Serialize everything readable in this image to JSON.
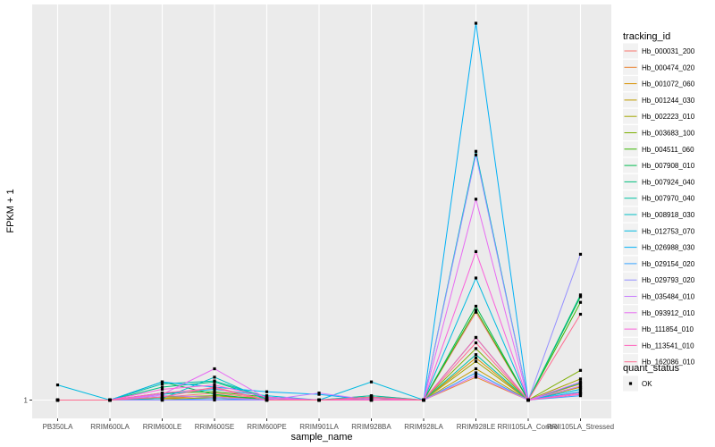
{
  "chart_data": {
    "type": "line",
    "xlabel": "sample_name",
    "ylabel": "FPKM + 1",
    "y_tick_labels": [
      "1"
    ],
    "categories": [
      "PB350LA",
      "RRIM600LA",
      "RRIM600LE",
      "RRIM600SE",
      "RRIM600PE",
      "RRIM901LA",
      "RRIM928BA",
      "RRIM928LA",
      "RRIM928LE",
      "RRII105LA_Control",
      "RRII105LA_Stressed"
    ],
    "grid": true,
    "legend_position": "right",
    "legend": {
      "color_title": "tracking_id",
      "shape_title": "quant_status",
      "shape_entries": [
        "OK"
      ]
    },
    "series": [
      {
        "name": "Hb_000031_200",
        "color": "#F8766D",
        "values": [
          1.0,
          1.0,
          1.2,
          1.5,
          1.1,
          1.0,
          1.3,
          1.0,
          14.5,
          1.0,
          2.0
        ]
      },
      {
        "name": "Hb_000474_020",
        "color": "#EA8331",
        "values": [
          1.0,
          1.0,
          1.1,
          1.3,
          1.0,
          1.0,
          1.2,
          1.0,
          3.0,
          1.0,
          1.5
        ]
      },
      {
        "name": "Hb_001072_060",
        "color": "#D89000",
        "values": [
          1.0,
          1.0,
          1.0,
          1.2,
          1.0,
          1.0,
          1.1,
          1.0,
          5.5,
          1.0,
          2.3
        ]
      },
      {
        "name": "Hb_001244_030",
        "color": "#C09B00",
        "values": [
          1.0,
          1.0,
          1.1,
          1.1,
          1.0,
          1.0,
          1.0,
          1.0,
          4.0,
          1.0,
          2.0
        ]
      },
      {
        "name": "Hb_002223_010",
        "color": "#A3A500",
        "values": [
          1.0,
          1.0,
          1.0,
          1.2,
          1.0,
          1.0,
          1.0,
          1.0,
          5.0,
          1.0,
          2.8
        ]
      },
      {
        "name": "Hb_003683_100",
        "color": "#7CAE00",
        "values": [
          1.0,
          1.0,
          1.2,
          1.3,
          1.1,
          1.0,
          1.0,
          1.0,
          7.0,
          1.0,
          3.8
        ]
      },
      {
        "name": "Hb_004511_060",
        "color": "#39B600",
        "values": [
          1.0,
          1.0,
          1.5,
          1.6,
          1.2,
          1.0,
          1.1,
          1.0,
          15.0,
          1.0,
          17.0
        ]
      },
      {
        "name": "Hb_007908_010",
        "color": "#00BB4E",
        "values": [
          1.0,
          1.0,
          2.5,
          1.4,
          1.0,
          1.0,
          1.2,
          1.0,
          16.0,
          1.0,
          18.5
        ]
      },
      {
        "name": "Hb_007924_040",
        "color": "#00BF7D",
        "values": [
          1.0,
          1.0,
          2.0,
          2.5,
          1.1,
          1.0,
          1.1,
          1.0,
          9.0,
          1.0,
          19.0
        ]
      },
      {
        "name": "Hb_007970_040",
        "color": "#00C1A3",
        "values": [
          1.0,
          1.0,
          2.3,
          2.6,
          1.2,
          1.0,
          1.3,
          1.0,
          6.0,
          1.0,
          2.4
        ]
      },
      {
        "name": "Hb_008918_030",
        "color": "#00BFC4",
        "values": [
          1.0,
          1.0,
          1.1,
          3.0,
          1.0,
          1.0,
          1.2,
          1.0,
          80.0,
          1.0,
          1.8
        ]
      },
      {
        "name": "Hb_012753_070",
        "color": "#00BAE0",
        "values": [
          2.2,
          1.0,
          1.4,
          1.8,
          1.3,
          1.0,
          2.5,
          1.0,
          24.0,
          1.0,
          1.8
        ]
      },
      {
        "name": "Hb_026988_030",
        "color": "#00B0F6",
        "values": [
          1.0,
          1.0,
          2.5,
          2.0,
          1.6,
          1.4,
          1.0,
          1.0,
          170.0,
          1.0,
          1.6
        ]
      },
      {
        "name": "Hb_029154_020",
        "color": "#35A2FF",
        "values": [
          1.0,
          1.0,
          1.0,
          1.1,
          1.0,
          1.0,
          1.0,
          1.0,
          3.5,
          1.0,
          1.3
        ]
      },
      {
        "name": "Hb_029793_020",
        "color": "#9590FF",
        "values": [
          1.0,
          1.0,
          1.0,
          1.0,
          1.0,
          1.0,
          1.0,
          1.0,
          78.0,
          1.0,
          32.0
        ]
      },
      {
        "name": "Hb_035484_010",
        "color": "#C77CFF",
        "values": [
          1.0,
          1.0,
          1.3,
          1.2,
          1.0,
          1.5,
          1.0,
          1.0,
          3.2,
          1.0,
          2.1
        ]
      },
      {
        "name": "Hb_093912_010",
        "color": "#E76BF3",
        "values": [
          1.0,
          1.0,
          1.4,
          4.0,
          1.1,
          1.0,
          1.0,
          1.0,
          55.0,
          1.0,
          2.5
        ]
      },
      {
        "name": "Hb_111854_010",
        "color": "#FA62DB",
        "values": [
          1.0,
          1.0,
          1.8,
          2.2,
          1.2,
          1.0,
          1.1,
          1.0,
          33.0,
          1.0,
          1.5
        ]
      },
      {
        "name": "Hb_113541_010",
        "color": "#FF62BC",
        "values": [
          1.0,
          1.0,
          1.5,
          1.9,
          1.0,
          1.0,
          1.0,
          1.0,
          9.0,
          1.0,
          1.4
        ]
      },
      {
        "name": "Hb_162086_010",
        "color": "#FF6C90",
        "values": [
          1.0,
          1.0,
          1.2,
          2.0,
          1.0,
          1.0,
          1.2,
          1.0,
          8.0,
          1.0,
          14.0
        ]
      }
    ]
  }
}
